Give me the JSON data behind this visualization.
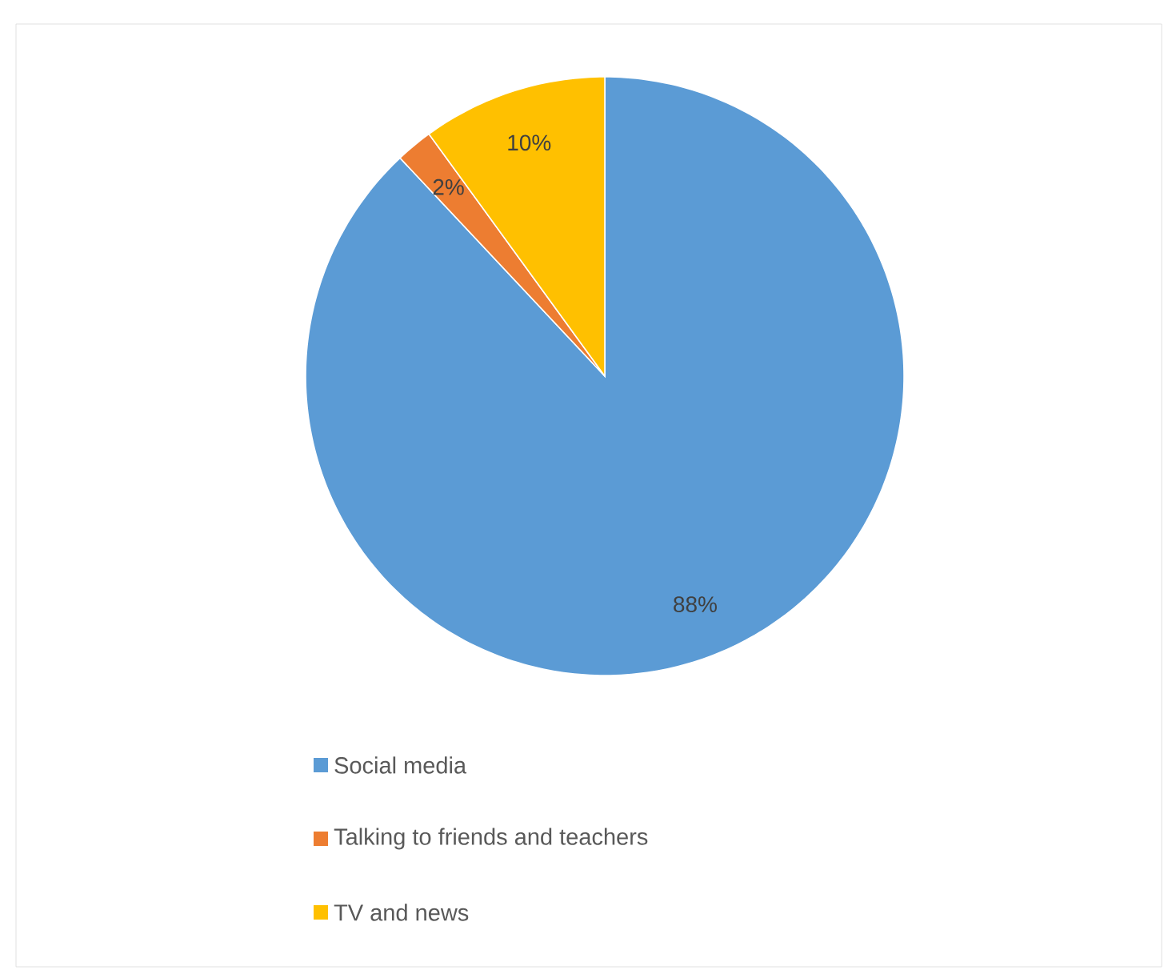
{
  "chart_data": {
    "type": "pie",
    "categories": [
      "Social media",
      "Talking to friends and teachers",
      "TV and news"
    ],
    "values": [
      88,
      2,
      10
    ],
    "colors": [
      "#5b9bd5",
      "#ed7d31",
      "#ffc000"
    ],
    "value_labels": [
      "88%",
      "2%",
      "10%"
    ],
    "legend": "bottom"
  }
}
